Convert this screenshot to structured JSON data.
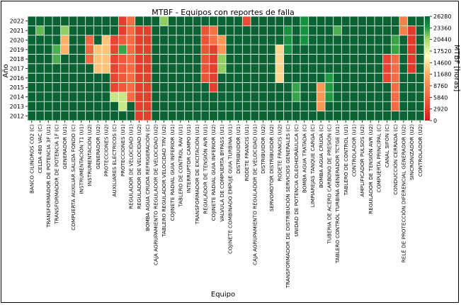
{
  "chart_data": {
    "type": "heatmap",
    "title": "MTBF - Equipos con reportes de falla",
    "xlabel": "Equipo",
    "ylabel": "Año",
    "colorbar_label": "MTBF [horas]",
    "years": [
      2012,
      2013,
      2014,
      2015,
      2016,
      2017,
      2018,
      2019,
      2020,
      2021,
      2022
    ],
    "y_ticks": [
      "2022",
      "2021",
      "2020",
      "2019",
      "2018",
      "2017",
      "2016",
      "2015",
      "2014",
      "2013",
      "2012"
    ],
    "colorbar_ticks": [
      "26280",
      "23360",
      "20440",
      "17520",
      "14600",
      "11680",
      "8760",
      "5840",
      "2920",
      "0"
    ],
    "vmin": 0,
    "vmax": 26280,
    "equipos": [
      "BANCO CILINDROS CO2 (C)",
      "CELDA 480 VAC (C)",
      "TRANSFORMADOR DE POTENCIA 3F (U1)",
      "TRANSFORMADOR DE POTENCIA 1F (C)",
      "GENERADOR (U1)",
      "COMPUERTA AUXILIAR SALIDA FONDO (C)",
      "INSTRUMENTACIÓN T1 (U1)",
      "INSTRUMENTACIÓN (U2)",
      "GENERADOR (U2)",
      "PROTECCIONES (U2)",
      "AUXILIARES ELÉCTRICOS (C)",
      "PROTECCIONES (U1)",
      "REGULADOR DE VELOCIDAD (U1)",
      "REGULADOR DE VELOCIDAD (U2)",
      "BOMBA AGUA CRUDA REFRIGERACIÓN (C)",
      "CAJA AGRUPAMIENTO REGULADOR DE VELOCIDAD (U2)",
      "TABLERO REGULADOR VELOCIDAD TRV (U2)",
      "COJINETE RADIAL GUIA INFERIOR (U1)",
      "TABLERO DE CONTROL RAV (U1)",
      "INTERRUPTOR CAMPO (U1)",
      "TRANSFORMADOR DE EXCITACIÓN (U1)",
      "REGULADOR DE TENSIÓN AVR (U1)",
      "COJINETE RADIAL GUIA INFERIOR (U2)",
      "VALVULA DE COMPUERTA BYPASS (U1)",
      "COJINETE COMBINADO EMPUJE GUIA TURBINA (U1)",
      "DISTRIBUIDOR (U1)",
      "RODETE FRANCIS (U1)",
      "CAJA AGRUPAMIENTO REGULADOR DE VELOCIDAD (U1)",
      "DISTRIBUIDOR (U2)",
      "SERVOMOTOR DISTRIBUIDOR (U2)",
      "RODETE FRANCIS (U2)",
      "TRANSFORMADOR DE DISTRIBUCIÓN SERVICIOS GENERALES (C)",
      "UNIDAD DE POTENCIA OLEOHIDRÁULICA (C)",
      "BOMBA AGUA TRATADA (C)",
      "LIMPIAREJAS TANQUE CARGA (C)",
      "BOMBA AGUA CRUDA (C)",
      "TUBERIA DE ACERO CARBONO DE PRESIÓN (C)",
      "TABLERO CONTROL TURBINA GENERADOR TCTGE (U1)",
      "TABLERO DE CONTROL (U1)",
      "CONTROLADOR (U1)",
      "AMPLIFICADOR PULSOS (U2)",
      "REGULADOR DE TENSIÓN AVR (U2)",
      "COMPUERTA PRINCIPAL (C)",
      "CANAL SIFÓN (C)",
      "CONDUCCIÓN CERRADA (C)",
      "RELÉ DE PROTECCIÓN DIFERENCIAL GENERADOR (U2)",
      "SINCRONIZADOR (U2)",
      "CONTROLADOR (U2)"
    ],
    "values": [
      [
        26280,
        26280,
        26280,
        26280,
        26280,
        26280,
        26280,
        26280,
        26280,
        26280,
        26280
      ],
      [
        26280,
        26280,
        26280,
        26280,
        26280,
        26280,
        26280,
        26280,
        26280,
        22000,
        26280
      ],
      [
        26280,
        26280,
        26280,
        26280,
        26280,
        26280,
        26280,
        26280,
        26280,
        26280,
        26280
      ],
      [
        26280,
        26280,
        26280,
        26280,
        26280,
        26280,
        22500,
        22500,
        26280,
        26280,
        26280
      ],
      [
        26280,
        26280,
        26280,
        26280,
        26280,
        26280,
        26280,
        12000,
        12000,
        21000,
        26280
      ],
      [
        26280,
        26280,
        26280,
        26280,
        26280,
        26280,
        26280,
        26280,
        26280,
        26280,
        26280
      ],
      [
        26280,
        26280,
        26280,
        26280,
        26280,
        26280,
        26280,
        26280,
        26280,
        26280,
        26280
      ],
      [
        26280,
        26280,
        26280,
        26280,
        26280,
        26280,
        6000,
        6000,
        6000,
        26280,
        26280
      ],
      [
        26280,
        26280,
        26280,
        26280,
        26280,
        13000,
        13000,
        13000,
        26280,
        26280,
        26280
      ],
      [
        26280,
        26280,
        26280,
        26280,
        26280,
        13000,
        13000,
        13000,
        13000,
        26280,
        26280
      ],
      [
        26280,
        26280,
        19000,
        3500,
        3500,
        3500,
        3500,
        3500,
        3500,
        26280,
        26280
      ],
      [
        26280,
        19000,
        19000,
        5000,
        5000,
        5000,
        5000,
        23000,
        5000,
        3000,
        3000
      ],
      [
        26280,
        26280,
        6500,
        6500,
        6500,
        6500,
        6500,
        6500,
        6500,
        6500,
        6500
      ],
      [
        3000,
        3000,
        3000,
        3000,
        3000,
        3000,
        3000,
        3000,
        3000,
        3000,
        26280
      ],
      [
        3000,
        3000,
        3000,
        3000,
        3000,
        3000,
        3000,
        3000,
        3000,
        3000,
        26280
      ],
      [
        26280,
        26280,
        26280,
        26280,
        26280,
        26280,
        26280,
        26280,
        26280,
        26280,
        26280
      ],
      [
        26280,
        26280,
        26280,
        26280,
        26280,
        26280,
        26280,
        26280,
        26280,
        26280,
        21000
      ],
      [
        26280,
        26280,
        26280,
        26280,
        26280,
        26280,
        26280,
        26280,
        26280,
        26280,
        26280
      ],
      [
        26280,
        26280,
        26280,
        26280,
        26280,
        26280,
        26280,
        26280,
        26280,
        26280,
        26280
      ],
      [
        26280,
        26280,
        26280,
        26280,
        26280,
        26280,
        26280,
        26280,
        26280,
        26280,
        26280
      ],
      [
        26280,
        26280,
        26280,
        26280,
        26280,
        26280,
        26280,
        26280,
        26280,
        26280,
        26280
      ],
      [
        26280,
        26280,
        26280,
        26280,
        4500,
        4500,
        4500,
        4500,
        4500,
        4500,
        26280
      ],
      [
        26280,
        26280,
        26280,
        3000,
        3000,
        3000,
        3000,
        3000,
        7000,
        7000,
        26280
      ],
      [
        26280,
        26280,
        26280,
        26280,
        26280,
        21000,
        21000,
        10000,
        10000,
        26280,
        26280
      ],
      [
        26280,
        26280,
        26280,
        26280,
        26280,
        26280,
        26280,
        26280,
        26280,
        26280,
        26280
      ],
      [
        26280,
        26280,
        26280,
        26280,
        26280,
        26280,
        26280,
        26280,
        26280,
        26280,
        26280
      ],
      [
        26280,
        26280,
        26280,
        26280,
        26280,
        26280,
        26280,
        26280,
        26280,
        26280,
        4000
      ],
      [
        26280,
        26280,
        26280,
        26280,
        26280,
        26280,
        26280,
        26280,
        26280,
        26280,
        26280
      ],
      [
        26280,
        26280,
        26280,
        26280,
        26280,
        26280,
        26280,
        26280,
        26280,
        26280,
        26280
      ],
      [
        26280,
        26280,
        26280,
        26280,
        26280,
        26280,
        26280,
        26280,
        26280,
        26280,
        26280
      ],
      [
        26280,
        26280,
        26280,
        26280,
        14000,
        14000,
        14000,
        14000,
        26280,
        26280,
        26280
      ],
      [
        26280,
        26280,
        26280,
        26280,
        26280,
        26280,
        26280,
        24000,
        24000,
        24000,
        26280
      ],
      [
        26280,
        26280,
        23000,
        23000,
        26280,
        26280,
        26280,
        26280,
        26280,
        26280,
        26280
      ],
      [
        26280,
        26280,
        26280,
        26280,
        26280,
        26280,
        26280,
        26280,
        24000,
        24000,
        24000
      ],
      [
        26280,
        26280,
        26280,
        26280,
        26280,
        26280,
        26280,
        26280,
        26280,
        26280,
        26280
      ],
      [
        26280,
        10000,
        10000,
        10000,
        26280,
        26280,
        26280,
        26280,
        26280,
        26280,
        26280
      ],
      [
        26280,
        26280,
        23500,
        23500,
        23500,
        26280,
        26280,
        26280,
        26280,
        26280,
        26280
      ],
      [
        26280,
        26280,
        26280,
        26280,
        26280,
        26280,
        26280,
        26280,
        26280,
        22500,
        26280
      ],
      [
        26280,
        26280,
        26280,
        26280,
        26280,
        26280,
        26280,
        26280,
        26280,
        26280,
        26280
      ],
      [
        26280,
        26280,
        26280,
        26280,
        26280,
        26280,
        26280,
        26280,
        26280,
        26280,
        26280
      ],
      [
        26280,
        26280,
        26280,
        26280,
        26280,
        26280,
        26280,
        26280,
        26280,
        26280,
        26280
      ],
      [
        26280,
        26280,
        26280,
        26280,
        26280,
        26280,
        26280,
        26280,
        26280,
        26280,
        26280
      ],
      [
        26280,
        26280,
        26280,
        26280,
        26280,
        26280,
        26280,
        26280,
        26280,
        26280,
        26280
      ],
      [
        26280,
        26280,
        26280,
        26280,
        3500,
        3500,
        3500,
        26280,
        26280,
        26280,
        26280
      ],
      [
        26280,
        6500,
        6500,
        6500,
        6500,
        6500,
        6500,
        23000,
        23000,
        26280,
        26280
      ],
      [
        26280,
        26280,
        26280,
        26280,
        26280,
        26280,
        26280,
        26280,
        26280,
        8000,
        8000
      ],
      [
        26280,
        26280,
        26280,
        26280,
        26280,
        2500,
        2500,
        2500,
        2500,
        2500,
        26280
      ],
      [
        26280,
        26280,
        26280,
        26280,
        26280,
        26280,
        26280,
        26280,
        26280,
        26280,
        26280
      ]
    ]
  }
}
